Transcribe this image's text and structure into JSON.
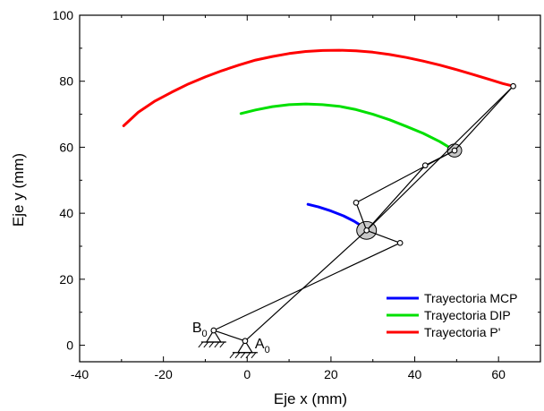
{
  "chart_data": {
    "type": "line",
    "title": "",
    "xlabel": "Eje x (mm)",
    "ylabel": "Eje y (mm)",
    "xlim": [
      -40,
      70
    ],
    "ylim": [
      -5,
      100
    ],
    "xticks": [
      -40,
      -20,
      0,
      20,
      40,
      60
    ],
    "yticks": [
      0,
      20,
      40,
      60,
      80,
      100
    ],
    "x_tick_labels": [
      "-40",
      "-20",
      "0",
      "20",
      "40",
      "60"
    ],
    "y_tick_labels": [
      "0",
      "20",
      "40",
      "60",
      "80",
      "100"
    ],
    "grid": false,
    "legend_position": "bottom-right",
    "series": [
      {
        "name": "Trayectoria MCP",
        "color": "#0000ff",
        "x": [
          14.5,
          17,
          20,
          23,
          25.5,
          27.5
        ],
        "y": [
          42.7,
          41.9,
          40.7,
          39.2,
          37.6,
          36.0
        ]
      },
      {
        "name": "Trayectoria DIP",
        "color": "#00e000",
        "x": [
          -1.5,
          2,
          6,
          10,
          14,
          18,
          22,
          26,
          30,
          34,
          38,
          42,
          46,
          49.5
        ],
        "y": [
          70.2,
          71.3,
          72.3,
          72.9,
          73.1,
          72.9,
          72.4,
          71.4,
          70.0,
          68.3,
          66.3,
          64.2,
          61.7,
          59.0
        ]
      },
      {
        "name": "Trayectoria P'",
        "color": "#ff0000",
        "x": [
          -29.5,
          -26,
          -22,
          -18,
          -14,
          -10,
          -6,
          -2,
          2,
          6,
          10,
          14,
          18,
          22,
          26,
          30,
          34,
          38,
          42,
          46,
          50,
          54,
          58,
          61,
          63.5
        ],
        "y": [
          66.5,
          70.6,
          74.0,
          76.7,
          79.2,
          81.3,
          83.2,
          84.9,
          86.4,
          87.5,
          88.4,
          89.0,
          89.3,
          89.4,
          89.2,
          88.8,
          88.1,
          87.2,
          86.1,
          84.9,
          83.5,
          82.0,
          80.5,
          79.3,
          78.5
        ]
      }
    ],
    "mechanism": {
      "color": "#000000",
      "links": [
        {
          "from": [
            -8,
            4.5
          ],
          "to": [
            36.5,
            31
          ]
        },
        {
          "from": [
            -8,
            4.5
          ],
          "to": [
            -0.5,
            1.3
          ]
        },
        {
          "from": [
            -0.5,
            1.3
          ],
          "to": [
            28.5,
            34.8
          ]
        },
        {
          "from": [
            36.5,
            31
          ],
          "to": [
            28.5,
            34.8
          ]
        },
        {
          "from": [
            28.5,
            34.8
          ],
          "to": [
            26,
            43.2
          ]
        },
        {
          "from": [
            26,
            43.2
          ],
          "to": [
            49.5,
            59
          ]
        },
        {
          "from": [
            28.5,
            34.8
          ],
          "to": [
            42.5,
            54.5
          ]
        },
        {
          "from": [
            42.5,
            54.5
          ],
          "to": [
            49.5,
            59
          ]
        },
        {
          "from": [
            49.5,
            59
          ],
          "to": [
            63.5,
            78.5
          ]
        },
        {
          "from": [
            28.5,
            34.8
          ],
          "to": [
            63.5,
            78.5
          ]
        }
      ],
      "joints": [
        [
          -8,
          4.5
        ],
        [
          -0.5,
          1.3
        ],
        [
          36.5,
          31
        ],
        [
          28.5,
          34.8
        ],
        [
          26,
          43.2
        ],
        [
          42.5,
          54.5
        ],
        [
          49.5,
          59
        ],
        [
          63.5,
          78.5
        ]
      ],
      "grounds": [
        [
          -8,
          4.5
        ],
        [
          -0.5,
          1.3
        ]
      ],
      "labels": [
        {
          "base": "B",
          "sub": "0",
          "x": -8,
          "y": 4.5,
          "anchor": "left"
        },
        {
          "base": "A",
          "sub": "0",
          "x": -0.5,
          "y": 1.3,
          "anchor": "right"
        }
      ]
    }
  }
}
